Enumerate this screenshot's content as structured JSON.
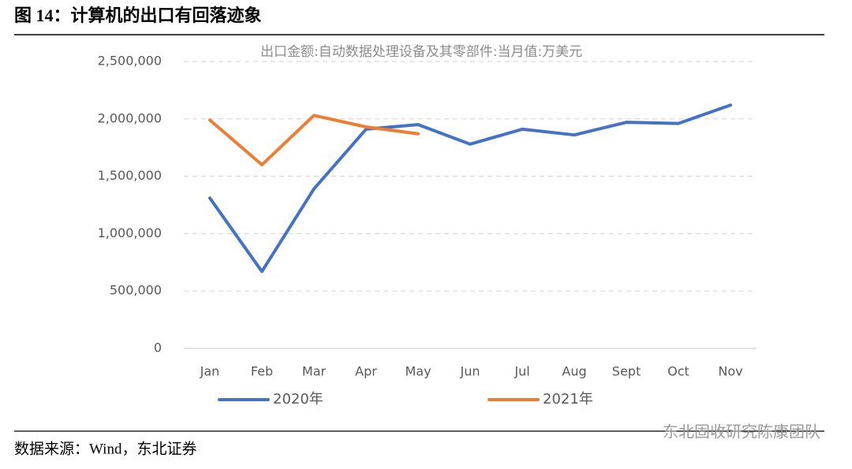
{
  "header": {
    "title": "图 14：计算机的出口有回落迹象"
  },
  "chart_data": {
    "type": "line",
    "subtitle": "出口金额:自动数据处理设备及其零部件:当月值:万美元",
    "categories": [
      "Jan",
      "Feb",
      "Mar",
      "Apr",
      "May",
      "Jun",
      "Jul",
      "Aug",
      "Sept",
      "Oct",
      "Nov"
    ],
    "series": [
      {
        "name": "2020年",
        "color": "#4472c4",
        "values": [
          1310000,
          670000,
          1390000,
          1910000,
          1950000,
          1780000,
          1910000,
          1860000,
          1970000,
          1960000,
          2120000
        ]
      },
      {
        "name": "2021年",
        "color": "#ed7d31",
        "values": [
          1990000,
          1600000,
          2030000,
          1930000,
          1870000,
          null,
          null,
          null,
          null,
          null,
          null
        ]
      }
    ],
    "ylim": [
      0,
      2500000
    ],
    "yticks": [
      0,
      {
        "value": 500000,
        "label": "500,000"
      },
      {
        "value": 1000000,
        "label": "1,000,000"
      },
      {
        "value": 1500000,
        "label": "1,500,000"
      },
      {
        "value": 2000000,
        "label": "2,000,000"
      },
      {
        "value": 2500000,
        "label": "2,500,000"
      }
    ],
    "grid": true
  },
  "footer": {
    "source": "数据来源：Wind，东北证券",
    "watermark": "东北固收研究陈康团队"
  }
}
